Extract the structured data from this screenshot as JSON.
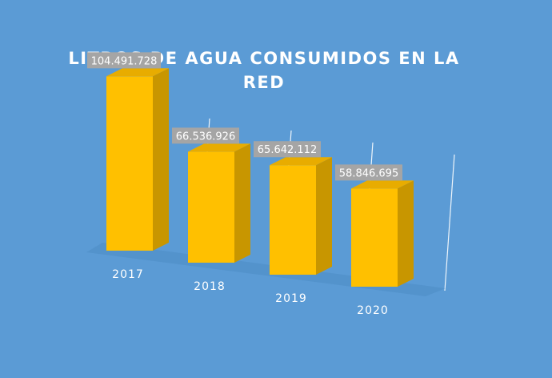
{
  "chart_data": {
    "type": "bar",
    "title_lines": [
      "LITROS DE AGUA CONSUMIDOS EN LA",
      "RED"
    ],
    "categories": [
      "2017",
      "2018",
      "2019",
      "2020"
    ],
    "values": [
      104491728,
      66536926,
      65642112,
      58846695
    ],
    "data_labels": [
      "104.491.728",
      "66.536.926",
      "65.642.112",
      "58.846.695"
    ],
    "ylim": [
      0,
      120000000
    ],
    "grid": true,
    "legend": "none",
    "bar_color": "#ffc000",
    "bar_side_color": "#c89600",
    "bar_top_color": "#e8ac00",
    "label_box_color": "#a5a5a5",
    "background_color": "#5b9bd5"
  }
}
